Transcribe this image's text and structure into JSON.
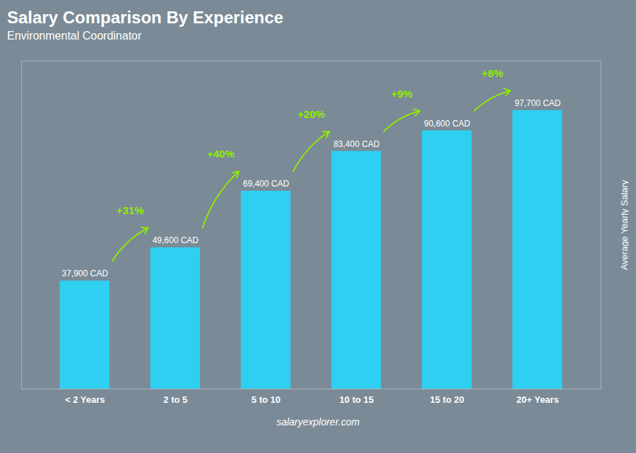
{
  "chart_data": {
    "type": "bar",
    "title": "Salary Comparison By Experience",
    "subtitle": "Environmental Coordinator",
    "categories": [
      "< 2 Years",
      "2 to 5",
      "5 to 10",
      "10 to 15",
      "15 to 20",
      "20+ Years"
    ],
    "values": [
      37900,
      49600,
      69400,
      83400,
      90600,
      97700
    ],
    "value_labels": [
      "37,900 CAD",
      "49,600 CAD",
      "69,400 CAD",
      "83,400 CAD",
      "90,600 CAD",
      "97,700 CAD"
    ],
    "data_labels": true,
    "color": "#2ecff0",
    "annotations": [
      "+31%",
      "+40%",
      "+20%",
      "+9%",
      "+8%"
    ],
    "ylabel": "Average Yearly Salary",
    "caption": "salaryexplorer.com",
    "ylim": [
      0,
      115000
    ],
    "tick_labels": "x"
  }
}
